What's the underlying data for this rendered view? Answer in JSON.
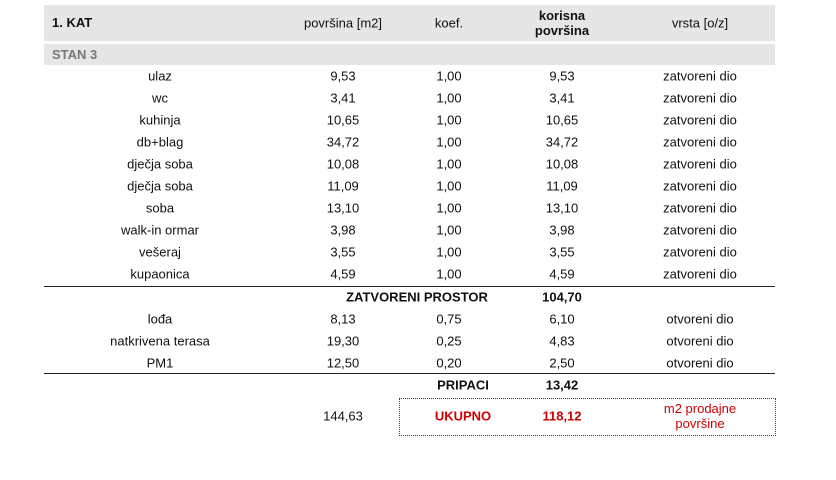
{
  "header": {
    "title": "1. KAT",
    "columns": [
      "površina [m2]",
      "koef.",
      "korisna površina",
      "vrsta [o/z]"
    ]
  },
  "section": "STAN 3",
  "rooms": [
    [
      "ulaz",
      "9,53",
      "1,00",
      "9,53",
      "zatvoreni dio"
    ],
    [
      "wc",
      "3,41",
      "1,00",
      "3,41",
      "zatvoreni dio"
    ],
    [
      "kuhinja",
      "10,65",
      "1,00",
      "10,65",
      "zatvoreni dio"
    ],
    [
      "db+blag",
      "34,72",
      "1,00",
      "34,72",
      "zatvoreni dio"
    ],
    [
      "dječja soba",
      "10,08",
      "1,00",
      "10,08",
      "zatvoreni dio"
    ],
    [
      "dječja soba",
      "11,09",
      "1,00",
      "11,09",
      "zatvoreni dio"
    ],
    [
      "soba",
      "13,10",
      "1,00",
      "13,10",
      "zatvoreni dio"
    ],
    [
      "walk-in ormar",
      "3,98",
      "1,00",
      "3,98",
      "zatvoreni dio"
    ],
    [
      "vešeraj",
      "3,55",
      "1,00",
      "3,55",
      "zatvoreni dio"
    ],
    [
      "kupaonica",
      "4,59",
      "1,00",
      "4,59",
      "zatvoreni dio"
    ]
  ],
  "closed_total": {
    "label": "ZATVORENI PROSTOR",
    "value": "104,70"
  },
  "open_rooms": [
    [
      "lođa",
      "8,13",
      "0,75",
      "6,10",
      "otvoreni dio"
    ],
    [
      "natkrivena terasa",
      "19,30",
      "0,25",
      "4,83",
      "otvoreni dio"
    ],
    [
      "PM1",
      "12,50",
      "0,20",
      "2,50",
      "otvoreni dio"
    ]
  ],
  "open_total": {
    "label": "PRIPACI",
    "value": "13,42"
  },
  "total": {
    "area": "144,63",
    "label": "UKUPNO",
    "value": "118,12",
    "note": "m2 prodajne površine"
  }
}
